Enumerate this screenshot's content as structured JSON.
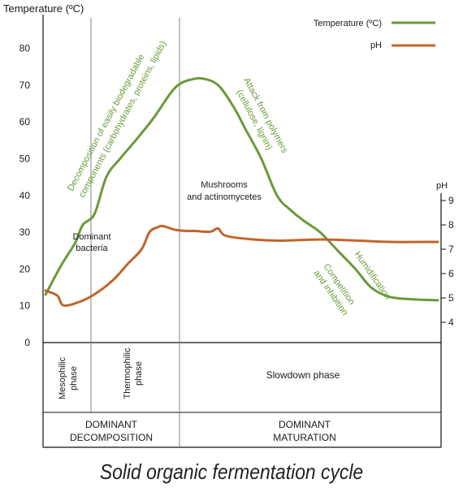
{
  "chart_data": {
    "type": "line",
    "title": "Solid organic fermentation cycle",
    "left_axis": {
      "label": "Temperature (ºC)",
      "ticks": [
        0,
        10,
        20,
        30,
        40,
        50,
        60,
        70,
        80
      ],
      "ylim": [
        0,
        85
      ]
    },
    "right_axis": {
      "label": "pH",
      "ticks": [
        4,
        5,
        6,
        7,
        8,
        9
      ],
      "ylim": [
        3.2,
        9.2
      ]
    },
    "x_scale": "relative time (0–1)",
    "series": [
      {
        "name": "Temperature (ºC)",
        "color": "#6a9a3a",
        "axis": "left",
        "points": [
          [
            0.0,
            13
          ],
          [
            0.04,
            21
          ],
          [
            0.075,
            27
          ],
          [
            0.095,
            32
          ],
          [
            0.125,
            35
          ],
          [
            0.155,
            45
          ],
          [
            0.19,
            50
          ],
          [
            0.23,
            55
          ],
          [
            0.275,
            61
          ],
          [
            0.32,
            68
          ],
          [
            0.345,
            70.5
          ],
          [
            0.37,
            71.5
          ],
          [
            0.4,
            71.8
          ],
          [
            0.44,
            70
          ],
          [
            0.48,
            64
          ],
          [
            0.51,
            58
          ],
          [
            0.55,
            50
          ],
          [
            0.59,
            40
          ],
          [
            0.625,
            36
          ],
          [
            0.66,
            33
          ],
          [
            0.7,
            30
          ],
          [
            0.745,
            25
          ],
          [
            0.79,
            20
          ],
          [
            0.83,
            15
          ],
          [
            0.875,
            12.5
          ],
          [
            0.93,
            11.8
          ],
          [
            1.0,
            11.5
          ]
        ]
      },
      {
        "name": "pH",
        "color": "#c0652a",
        "axis": "right",
        "points": [
          [
            0.0,
            5.3
          ],
          [
            0.03,
            5.1
          ],
          [
            0.045,
            4.7
          ],
          [
            0.08,
            4.8
          ],
          [
            0.12,
            5.1
          ],
          [
            0.17,
            5.7
          ],
          [
            0.21,
            6.4
          ],
          [
            0.245,
            7.0
          ],
          [
            0.265,
            7.7
          ],
          [
            0.285,
            7.9
          ],
          [
            0.3,
            7.95
          ],
          [
            0.33,
            7.8
          ],
          [
            0.36,
            7.75
          ],
          [
            0.38,
            7.75
          ],
          [
            0.42,
            7.72
          ],
          [
            0.44,
            7.85
          ],
          [
            0.46,
            7.55
          ],
          [
            0.53,
            7.4
          ],
          [
            0.6,
            7.35
          ],
          [
            0.7,
            7.4
          ],
          [
            0.8,
            7.35
          ],
          [
            0.88,
            7.3
          ],
          [
            1.0,
            7.3
          ]
        ]
      }
    ],
    "legend": {
      "placement": "top-right",
      "items": [
        "Temperature (ºC)",
        "pH"
      ]
    },
    "phases": [
      {
        "label": "Mesophilic phase",
        "x_end": 0.115
      },
      {
        "label": "Thermophilic phase",
        "x_end": 0.345
      },
      {
        "label": "Slowdown phase",
        "x_end": 1.0
      }
    ],
    "stages": [
      {
        "label": "DOMINANT DECOMPOSITION"
      },
      {
        "label": "DOMINANT MATURATION"
      }
    ],
    "annotations": [
      {
        "text": "Decomposition of easily biodegradable components (carbohydrates, proteins, lipids)",
        "color": "#6a9a3a"
      },
      {
        "text": "Attack from polymers (cellulose, lignin)",
        "color": "#6a9a3a"
      },
      {
        "text": "Mushrooms and actinomycetes",
        "color": "#1a1a1a"
      },
      {
        "text": "Dominant bacteria",
        "color": "#1a1a1a"
      },
      {
        "text": "Humidification",
        "color": "#6a9a3a"
      },
      {
        "text": "Competition and inhibition",
        "color": "#6a9a3a"
      }
    ]
  }
}
